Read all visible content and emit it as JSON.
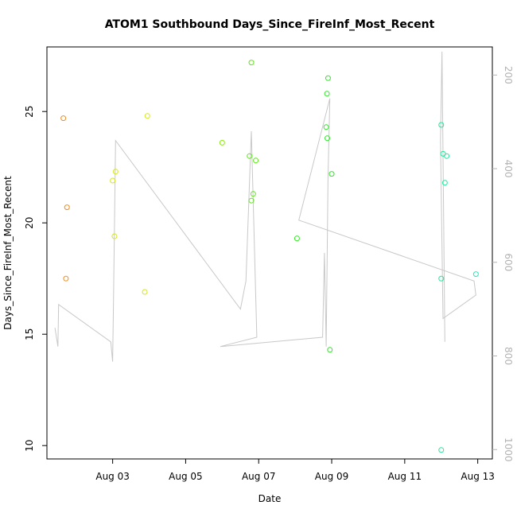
{
  "chart_data": {
    "type": "scatter",
    "title": "ATOM1 Southbound Days_Since_FireInf_Most_Recent",
    "xlabel": "Date",
    "ylabel": "Days_Since_FireInf_Most_Recent",
    "x_ticks": [
      {
        "label": "Aug 03",
        "value": 3
      },
      {
        "label": "Aug 05",
        "value": 5
      },
      {
        "label": "Aug 07",
        "value": 7
      },
      {
        "label": "Aug 09",
        "value": 9
      },
      {
        "label": "Aug 11",
        "value": 11
      },
      {
        "label": "Aug 13",
        "value": 13
      }
    ],
    "xlim": [
      1.2,
      13.4
    ],
    "ylim": [
      9.4,
      27.9
    ],
    "y_ticks": [
      10,
      15,
      20,
      25
    ],
    "y2_ticks": [
      200,
      400,
      600,
      800,
      1000
    ],
    "y2lim": [
      1020,
      140
    ],
    "grid": false,
    "points": [
      {
        "x": 1.65,
        "y": 24.7,
        "color": "#f08c1e"
      },
      {
        "x": 1.75,
        "y": 20.7,
        "color": "#f08c1e"
      },
      {
        "x": 1.72,
        "y": 17.5,
        "color": "#f08c1e"
      },
      {
        "x": 3.0,
        "y": 21.9,
        "color": "#d6e620"
      },
      {
        "x": 3.08,
        "y": 22.3,
        "color": "#d6e620"
      },
      {
        "x": 3.05,
        "y": 19.4,
        "color": "#d6e620"
      },
      {
        "x": 3.95,
        "y": 24.8,
        "color": "#d6e620"
      },
      {
        "x": 3.88,
        "y": 16.9,
        "color": "#d6e620"
      },
      {
        "x": 6.0,
        "y": 23.6,
        "color": "#8ee61a"
      },
      {
        "x": 6.8,
        "y": 27.2,
        "color": "#5fe61a"
      },
      {
        "x": 6.75,
        "y": 23.0,
        "color": "#5fe61a"
      },
      {
        "x": 6.92,
        "y": 22.8,
        "color": "#5fe61a"
      },
      {
        "x": 6.85,
        "y": 21.3,
        "color": "#5fe61a"
      },
      {
        "x": 6.8,
        "y": 21.0,
        "color": "#5fe61a"
      },
      {
        "x": 8.05,
        "y": 19.3,
        "color": "#30e620"
      },
      {
        "x": 8.9,
        "y": 26.5,
        "color": "#2ee628"
      },
      {
        "x": 8.87,
        "y": 25.8,
        "color": "#2ee628"
      },
      {
        "x": 8.85,
        "y": 24.3,
        "color": "#2ee628"
      },
      {
        "x": 8.88,
        "y": 23.8,
        "color": "#2ee628"
      },
      {
        "x": 9.0,
        "y": 22.2,
        "color": "#2ee628"
      },
      {
        "x": 8.95,
        "y": 14.3,
        "color": "#2ee628"
      },
      {
        "x": 12.0,
        "y": 24.4,
        "color": "#24e69a"
      },
      {
        "x": 12.05,
        "y": 23.1,
        "color": "#24e69a"
      },
      {
        "x": 12.15,
        "y": 23.0,
        "color": "#24e69a"
      },
      {
        "x": 12.1,
        "y": 21.8,
        "color": "#24e69a"
      },
      {
        "x": 12.0,
        "y": 17.5,
        "color": "#24e69a"
      },
      {
        "x": 12.0,
        "y": 9.8,
        "color": "#24e69a"
      },
      {
        "x": 12.95,
        "y": 17.7,
        "color": "#28e6b8"
      }
    ],
    "line_y2": {
      "color": "#c8c8c8",
      "points": [
        [
          1.42,
          740
        ],
        [
          1.5,
          780
        ],
        [
          1.52,
          690
        ],
        [
          2.95,
          770
        ],
        [
          3.0,
          812
        ],
        [
          3.02,
          706
        ],
        [
          3.08,
          340
        ],
        [
          6.5,
          700
        ],
        [
          6.65,
          640
        ],
        [
          6.8,
          320
        ],
        [
          6.95,
          760
        ],
        [
          5.95,
          780
        ],
        [
          8.75,
          760
        ],
        [
          8.8,
          580
        ],
        [
          8.85,
          780
        ],
        [
          8.9,
          420
        ],
        [
          8.95,
          250
        ],
        [
          8.1,
          510
        ],
        [
          12.9,
          640
        ],
        [
          12.95,
          670
        ],
        [
          12.05,
          720
        ],
        [
          11.98,
          340
        ],
        [
          12.02,
          150
        ],
        [
          12.1,
          770
        ]
      ]
    }
  }
}
